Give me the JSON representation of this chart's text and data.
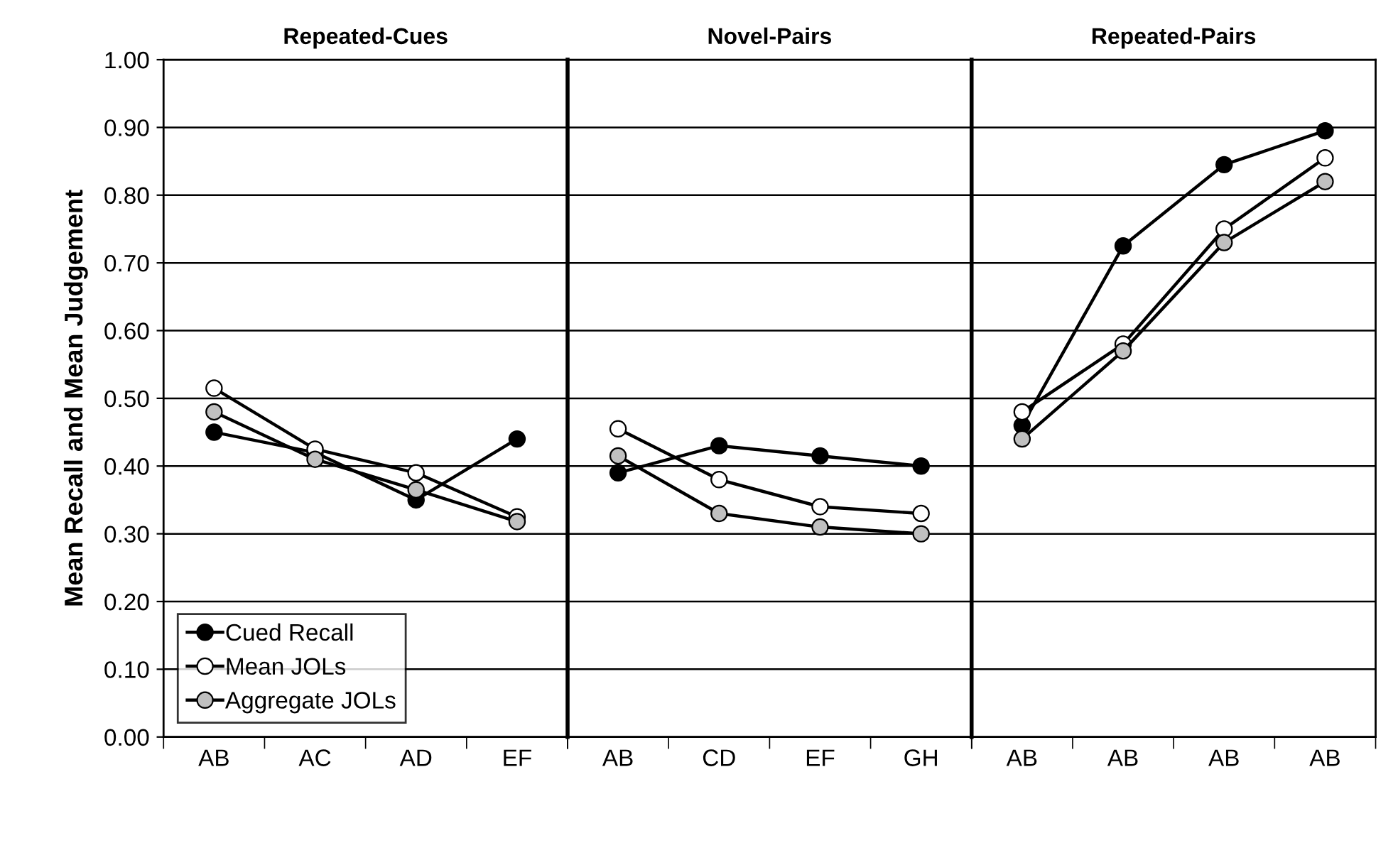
{
  "chart_data": [
    {
      "type": "line",
      "title": "Repeated-Cues",
      "ylabel": "Mean Recall and Mean Judgement",
      "categories": [
        "AB",
        "AC",
        "AD",
        "EF"
      ],
      "marker": "circle",
      "legend": "bottom left",
      "grid": "y",
      "ylim": [
        0,
        1
      ],
      "yticks": [
        {
          "value": 0,
          "label": "0.00"
        },
        {
          "value": 0.1,
          "label": "0.10"
        },
        {
          "value": 0.2,
          "label": "0.20"
        },
        {
          "value": 0.3,
          "label": "0.30"
        },
        {
          "value": 0.4,
          "label": "0.40"
        },
        {
          "value": 0.5,
          "label": "0.50"
        },
        {
          "value": 0.6,
          "label": "0.60"
        },
        {
          "value": 0.7,
          "label": "0.70"
        },
        {
          "value": 0.8,
          "label": "0.80"
        },
        {
          "value": 0.9,
          "label": "0.90"
        },
        {
          "value": 1,
          "label": "1.00"
        }
      ],
      "series": [
        {
          "name": "Cued Recall",
          "color": "#000000",
          "values": [
            0.45,
            0.42,
            0.35,
            0.44
          ]
        },
        {
          "name": "Mean JOLs",
          "color": "#ffffff",
          "values": [
            0.515,
            0.425,
            0.39,
            0.325
          ]
        },
        {
          "name": "Aggregate JOLs",
          "color": "#c0c0c0",
          "values": [
            0.48,
            0.41,
            0.365,
            0.318
          ]
        }
      ]
    },
    {
      "type": "line",
      "title": "Novel-Pairs",
      "categories": [
        "AB",
        "CD",
        "EF",
        "GH"
      ],
      "marker": "circle",
      "grid": "y",
      "tick_labels": "x",
      "ylim": [
        0,
        1
      ],
      "series": [
        {
          "color": "#000000",
          "values": [
            0.39,
            0.43,
            0.415,
            0.4
          ]
        },
        {
          "color": "#ffffff",
          "values": [
            0.455,
            0.38,
            0.34,
            0.33
          ]
        },
        {
          "color": "#c0c0c0",
          "values": [
            0.415,
            0.33,
            0.31,
            0.3
          ]
        }
      ]
    },
    {
      "type": "line",
      "title": "Repeated-Pairs",
      "categories": [
        "AB",
        "AB",
        "AB",
        "AB"
      ],
      "marker": "circle",
      "grid": "y",
      "tick_labels": "x",
      "ylim": [
        0,
        1
      ],
      "series": [
        {
          "color": "#000000",
          "values": [
            0.46,
            0.725,
            0.845,
            0.895
          ]
        },
        {
          "color": "#ffffff",
          "values": [
            0.48,
            0.58,
            0.75,
            0.855
          ]
        },
        {
          "color": "#c0c0c0",
          "values": [
            0.44,
            0.57,
            0.73,
            0.82
          ]
        }
      ]
    }
  ]
}
